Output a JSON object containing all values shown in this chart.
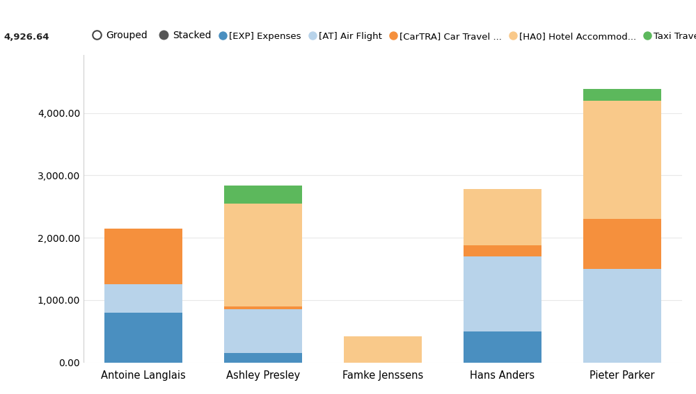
{
  "categories": [
    "Antoine Langlais",
    "Ashley Presley",
    "Famke Jenssens",
    "Hans Anders",
    "Pieter Parker"
  ],
  "series": [
    {
      "label": "[EXP] Expenses",
      "color": "#4a8fc0",
      "values": [
        800,
        150,
        0,
        500,
        0
      ]
    },
    {
      "label": "[AT] Air Flight",
      "color": "#b8d3ea",
      "values": [
        450,
        700,
        0,
        1200,
        1500
      ]
    },
    {
      "label": "[CarTRA] Car Travel ...",
      "color": "#f5903d",
      "values": [
        900,
        50,
        0,
        180,
        800
      ]
    },
    {
      "label": "[HA0] Hotel Accommod...",
      "color": "#f9c98a",
      "values": [
        0,
        1650,
        420,
        900,
        1900
      ]
    },
    {
      "label": "Taxi Travel",
      "color": "#5cb85c",
      "values": [
        0,
        290,
        0,
        0,
        180
      ]
    }
  ],
  "ylim": [
    0,
    4926.64
  ],
  "yticks": [
    0,
    1000,
    2000,
    3000,
    4000
  ],
  "ytick_labels": [
    "0.00",
    "1,000.00",
    "2,000.00",
    "3,000.00",
    "4,000.00"
  ],
  "max_label": "4,926.64",
  "background_color": "#ffffff",
  "grid_color": "#e8e8e8",
  "bar_width": 0.65,
  "legend_grouped_label": "Grouped",
  "legend_stacked_label": "Stacked"
}
